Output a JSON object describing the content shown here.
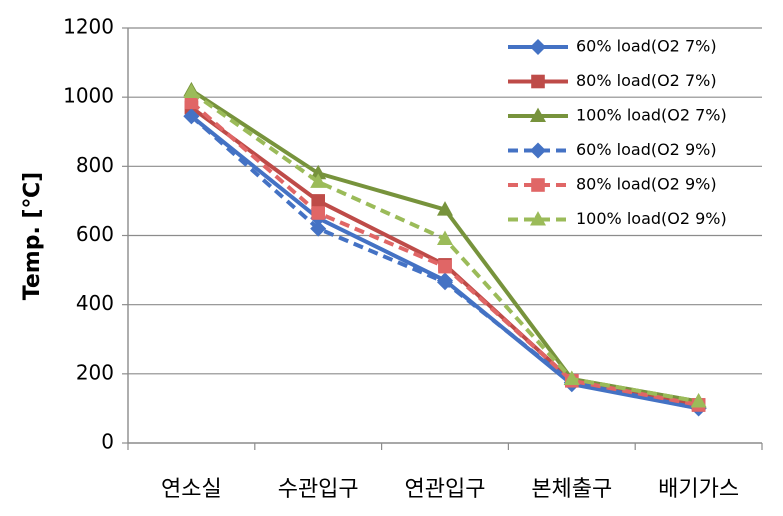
{
  "chart_data": {
    "type": "line",
    "categories": [
      "연소실",
      "수관입구",
      "연관입구",
      "본체출구",
      "배기가스"
    ],
    "ylabel": "Temp. [℃]",
    "ylim": [
      0,
      1200
    ],
    "yticks": [
      0,
      200,
      400,
      600,
      800,
      1000,
      1200
    ],
    "grid": true,
    "legend_position": "top-right",
    "series": [
      {
        "name": "60% load(O2 7%)",
        "color": "#4472C4",
        "dash": "solid",
        "marker": "diamond",
        "values": [
          945,
          650,
          470,
          170,
          100
        ]
      },
      {
        "name": "80% load(O2 7%)",
        "color": "#BE4B48",
        "dash": "solid",
        "marker": "square",
        "values": [
          970,
          700,
          515,
          180,
          110
        ]
      },
      {
        "name": "100% load(O2 7%)",
        "color": "#77933C",
        "dash": "solid",
        "marker": "triangle",
        "values": [
          1020,
          780,
          675,
          185,
          120
        ]
      },
      {
        "name": "60% load(O2 9%)",
        "color": "#4472C4",
        "dash": "dashed",
        "marker": "diamond",
        "values": [
          945,
          620,
          465,
          175,
          100
        ]
      },
      {
        "name": "80% load(O2 9%)",
        "color": "#E06666",
        "dash": "dashed",
        "marker": "square",
        "values": [
          985,
          665,
          510,
          180,
          110
        ]
      },
      {
        "name": "100% load(O2 9%)",
        "color": "#9BBB59",
        "dash": "dashed",
        "marker": "triangle",
        "values": [
          1015,
          755,
          590,
          185,
          120
        ]
      }
    ]
  }
}
